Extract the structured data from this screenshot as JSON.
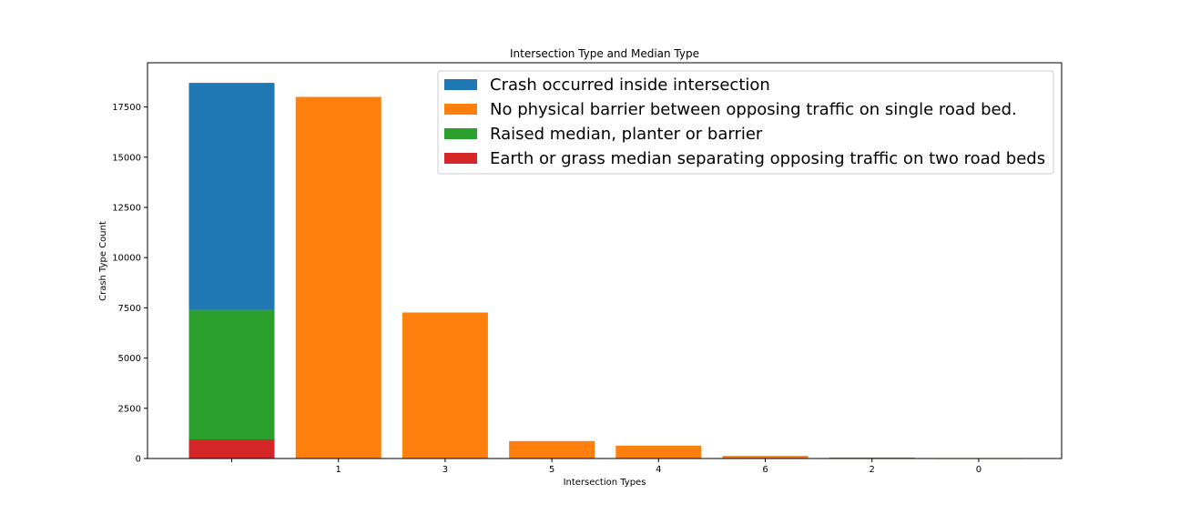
{
  "chart_data": {
    "type": "bar",
    "title": "Intersection Type and Median Type",
    "xlabel": "Intersection Types",
    "ylabel": "Crash Type Count",
    "ylim": [
      0,
      19700
    ],
    "yticks": [
      0,
      2500,
      5000,
      7500,
      10000,
      12500,
      15000,
      17500
    ],
    "categories": [
      "",
      "1",
      "3",
      "5",
      "4",
      "6",
      "2",
      "0"
    ],
    "series": [
      {
        "name": "Crash occurred inside intersection",
        "color": "#1f77b4",
        "values": [
          11300,
          0,
          0,
          0,
          0,
          0,
          0,
          0
        ]
      },
      {
        "name": "No physical barrier between opposing traffic on single road bed.",
        "color": "#ff7f0e",
        "values": [
          0,
          18000,
          7270,
          870,
          640,
          130,
          50,
          10
        ]
      },
      {
        "name": "Raised median, planter or barrier",
        "color": "#2ca02c",
        "values": [
          6450,
          0,
          0,
          0,
          0,
          0,
          0,
          0
        ]
      },
      {
        "name": "Earth or grass median separating opposing traffic on two road beds",
        "color": "#d62728",
        "values": [
          950,
          0,
          0,
          0,
          0,
          0,
          0,
          0
        ]
      }
    ],
    "stacking_order": [
      3,
      2,
      0,
      1
    ],
    "legend_position": "top-right",
    "grid": false
  }
}
